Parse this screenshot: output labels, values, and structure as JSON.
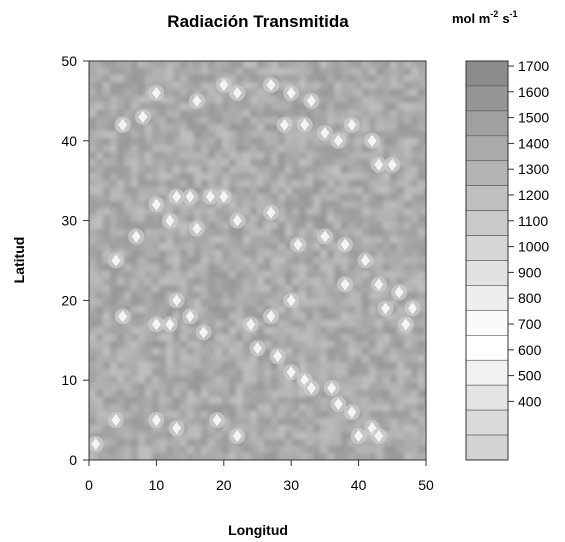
{
  "chart_data": {
    "type": "heatmap",
    "title": "Radiación Transmitida",
    "xlabel": "Longitud",
    "ylabel": "Latitud",
    "xlim": [
      0,
      50
    ],
    "ylim": [
      0,
      50
    ],
    "x_ticks": [
      "0",
      "10",
      "20",
      "30",
      "40",
      "50"
    ],
    "y_ticks": [
      "0",
      "10",
      "20",
      "30",
      "40",
      "50"
    ],
    "colorbar": {
      "unit_main": "mol m",
      "unit_exp1": "-2",
      "unit_s": "s",
      "unit_exp2": "-1",
      "levels": [
        1700,
        1600,
        1500,
        1400,
        1300,
        1200,
        1100,
        1000,
        900,
        800,
        700,
        600,
        500,
        400
      ],
      "labels": [
        "1700",
        "1600",
        "1500",
        "1400",
        "1300",
        "1200",
        "1100",
        "1000",
        "900",
        "800",
        "700",
        "600",
        "500",
        "400"
      ],
      "colors": [
        "#8c8c8c",
        "#969696",
        "#a0a0a0",
        "#aaaaaa",
        "#b4b4b4",
        "#bfbfbf",
        "#cacaca",
        "#d6d6d6",
        "#e2e2e2",
        "#eeeeee",
        "#fafafa",
        "#ffffff",
        "#f1f1f1",
        "#e4e4e4",
        "#dadada",
        "#d3d3d3"
      ]
    },
    "background_color": "#a6a6a6",
    "bright_spots": [
      [
        10,
        46
      ],
      [
        22,
        46
      ],
      [
        27,
        47
      ],
      [
        30,
        46
      ],
      [
        33,
        45
      ],
      [
        29,
        42
      ],
      [
        32,
        42
      ],
      [
        35,
        41
      ],
      [
        37,
        40
      ],
      [
        39,
        42
      ],
      [
        42,
        40
      ],
      [
        43,
        37
      ],
      [
        45,
        37
      ],
      [
        5,
        42
      ],
      [
        8,
        43
      ],
      [
        16,
        45
      ],
      [
        20,
        47
      ],
      [
        10,
        32
      ],
      [
        13,
        33
      ],
      [
        15,
        33
      ],
      [
        18,
        33
      ],
      [
        20,
        33
      ],
      [
        12,
        30
      ],
      [
        16,
        29
      ],
      [
        22,
        30
      ],
      [
        27,
        31
      ],
      [
        31,
        27
      ],
      [
        35,
        28
      ],
      [
        38,
        27
      ],
      [
        41,
        25
      ],
      [
        43,
        22
      ],
      [
        44,
        19
      ],
      [
        46,
        21
      ],
      [
        48,
        19
      ],
      [
        7,
        28
      ],
      [
        4,
        25
      ],
      [
        5,
        18
      ],
      [
        10,
        17
      ],
      [
        12,
        17
      ],
      [
        13,
        20
      ],
      [
        15,
        18
      ],
      [
        17,
        16
      ],
      [
        24,
        17
      ],
      [
        27,
        18
      ],
      [
        25,
        14
      ],
      [
        28,
        13
      ],
      [
        30,
        11
      ],
      [
        32,
        10
      ],
      [
        33,
        9
      ],
      [
        36,
        9
      ],
      [
        37,
        7
      ],
      [
        39,
        6
      ],
      [
        40,
        3
      ],
      [
        42,
        4
      ],
      [
        43,
        3
      ],
      [
        47,
        17
      ],
      [
        4,
        5
      ],
      [
        10,
        5
      ],
      [
        13,
        4
      ],
      [
        19,
        5
      ],
      [
        22,
        3
      ],
      [
        1,
        2
      ],
      [
        30,
        20
      ],
      [
        38,
        22
      ]
    ]
  }
}
